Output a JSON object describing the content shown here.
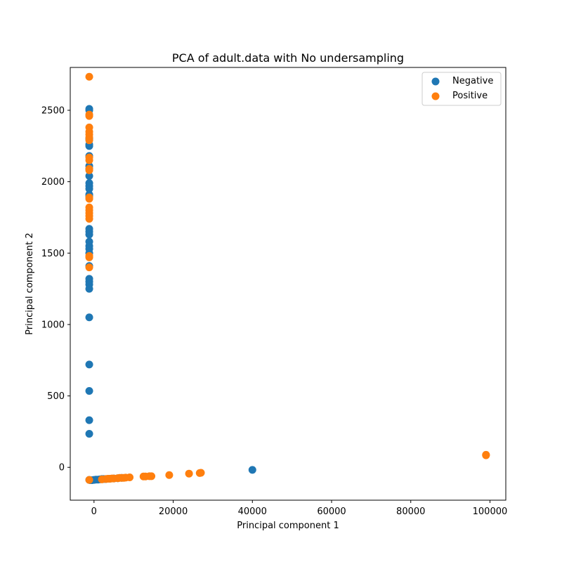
{
  "chart_data": {
    "type": "scatter",
    "title": "PCA of adult.data with No undersampling",
    "xlabel": "Principal component 1",
    "ylabel": "Principal component 2",
    "xlim": [
      -6000,
      104000
    ],
    "ylim": [
      -230,
      2800
    ],
    "xticks": [
      0,
      20000,
      40000,
      60000,
      80000,
      100000
    ],
    "yticks": [
      0,
      500,
      1000,
      1500,
      2000,
      2500
    ],
    "legend_position": "top-right",
    "grid": false,
    "series": [
      {
        "name": "Negative",
        "color": "#1f77b4",
        "points": [
          [
            -1200,
            2510
          ],
          [
            -1200,
            2500
          ],
          [
            -1200,
            2300
          ],
          [
            -1200,
            2260
          ],
          [
            -1200,
            2250
          ],
          [
            -1200,
            2180
          ],
          [
            -1200,
            2110
          ],
          [
            -1200,
            2090
          ],
          [
            -1200,
            2040
          ],
          [
            -1200,
            1990
          ],
          [
            -1200,
            1970
          ],
          [
            -1200,
            1950
          ],
          [
            -1200,
            1910
          ],
          [
            -1200,
            1900
          ],
          [
            -1200,
            1670
          ],
          [
            -1200,
            1650
          ],
          [
            -1200,
            1630
          ],
          [
            -1200,
            1580
          ],
          [
            -1200,
            1550
          ],
          [
            -1200,
            1530
          ],
          [
            -1200,
            1500
          ],
          [
            -1200,
            1410
          ],
          [
            -1200,
            1320
          ],
          [
            -1200,
            1300
          ],
          [
            -1200,
            1280
          ],
          [
            -1200,
            1250
          ],
          [
            -1200,
            1050
          ],
          [
            -1200,
            720
          ],
          [
            -1200,
            535
          ],
          [
            -1200,
            330
          ],
          [
            -1200,
            235
          ],
          [
            -1200,
            -88
          ],
          [
            -1000,
            -90
          ],
          [
            -500,
            -90
          ],
          [
            0,
            -88
          ],
          [
            500,
            -86
          ],
          [
            1000,
            -86
          ],
          [
            1500,
            -84
          ],
          [
            2000,
            -82
          ],
          [
            2500,
            -82
          ],
          [
            3000,
            -82
          ],
          [
            4000,
            -80
          ],
          [
            5000,
            -78
          ],
          [
            6000,
            -76
          ],
          [
            7000,
            -74
          ],
          [
            40000,
            -18
          ]
        ]
      },
      {
        "name": "Positive",
        "color": "#ff7f0e",
        "points": [
          [
            -1200,
            2735
          ],
          [
            -1200,
            2470
          ],
          [
            -1200,
            2460
          ],
          [
            -1200,
            2380
          ],
          [
            -1200,
            2350
          ],
          [
            -1200,
            2330
          ],
          [
            -1200,
            2310
          ],
          [
            -1200,
            2290
          ],
          [
            -1200,
            2170
          ],
          [
            -1200,
            2150
          ],
          [
            -1200,
            2090
          ],
          [
            -1200,
            2080
          ],
          [
            -1200,
            1890
          ],
          [
            -1200,
            1880
          ],
          [
            -1200,
            1820
          ],
          [
            -1200,
            1800
          ],
          [
            -1200,
            1780
          ],
          [
            -1200,
            1760
          ],
          [
            -1200,
            1740
          ],
          [
            -1200,
            1480
          ],
          [
            -1200,
            1470
          ],
          [
            -1200,
            1400
          ],
          [
            -1200,
            -88
          ],
          [
            2000,
            -84
          ],
          [
            3000,
            -82
          ],
          [
            3500,
            -80
          ],
          [
            4000,
            -80
          ],
          [
            4500,
            -78
          ],
          [
            5000,
            -78
          ],
          [
            6000,
            -76
          ],
          [
            6500,
            -74
          ],
          [
            7000,
            -74
          ],
          [
            7500,
            -74
          ],
          [
            8000,
            -72
          ],
          [
            9000,
            -70
          ],
          [
            12500,
            -64
          ],
          [
            13000,
            -64
          ],
          [
            14000,
            -62
          ],
          [
            14500,
            -62
          ],
          [
            19000,
            -54
          ],
          [
            24000,
            -44
          ],
          [
            26700,
            -40
          ],
          [
            27000,
            -38
          ],
          [
            99000,
            88
          ],
          [
            99000,
            84
          ]
        ]
      }
    ]
  }
}
